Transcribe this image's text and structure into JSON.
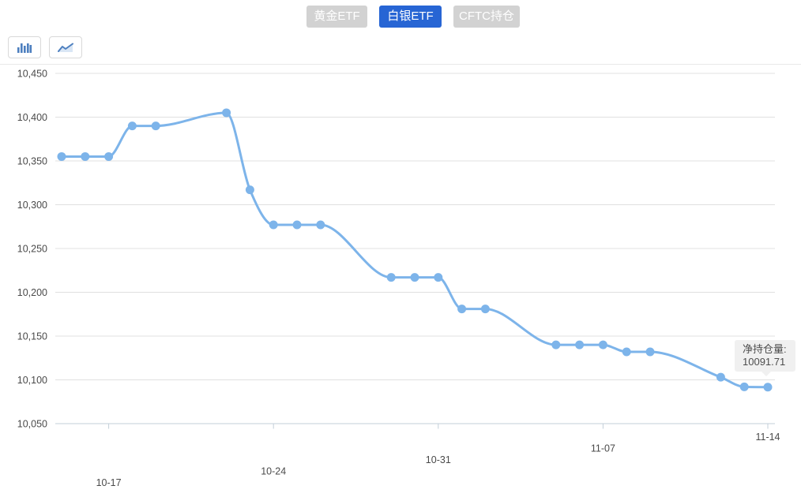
{
  "tabs": [
    {
      "label": "黄金ETF",
      "active": false
    },
    {
      "label": "白银ETF",
      "active": true
    },
    {
      "label": "CFTC持仓",
      "active": false
    }
  ],
  "toolbar": {
    "buttons": [
      {
        "icon": "bar-chart-icon"
      },
      {
        "icon": "line-chart-icon"
      }
    ]
  },
  "tooltip": {
    "label": "净持仓量:",
    "value": "10091.71"
  },
  "colors": {
    "accent_blue": "#2765d4",
    "inactive_tab_gray": "#d2d2d2",
    "series_line": "#7db4ea",
    "grid_line": "#e0e0e0",
    "axis_line": "#c3cfd9",
    "label_text": "#4a4a4a",
    "tooltip_bg": "#f0f0f0",
    "icon_blue": "#4d7fbf"
  },
  "chart_data": {
    "type": "line",
    "smooth": true,
    "series_name": "净持仓量",
    "x": [
      "10-15",
      "10-16",
      "10-17",
      "10-18",
      "10-19",
      "10-22",
      "10-23",
      "10-24",
      "10-25",
      "10-26",
      "10-29",
      "10-30",
      "10-31",
      "11-01",
      "11-02",
      "11-05",
      "11-06",
      "11-07",
      "11-08",
      "11-09",
      "11-12",
      "11-13",
      "11-14"
    ],
    "day_offsets": [
      0,
      1,
      2,
      3,
      4,
      7,
      8,
      9,
      10,
      11,
      14,
      15,
      16,
      17,
      18,
      21,
      22,
      23,
      24,
      25,
      28,
      29,
      30
    ],
    "values": [
      10355,
      10355,
      10355,
      10390,
      10390,
      10405,
      10317,
      10277,
      10277,
      10277,
      10217,
      10217,
      10217,
      10181,
      10181,
      10140,
      10140,
      10140,
      10132,
      10132,
      10103,
      10092,
      10091.71
    ],
    "ylim": [
      10050,
      10450
    ],
    "yticks": {
      "values": [
        10050,
        10100,
        10150,
        10200,
        10250,
        10300,
        10350,
        10400,
        10450
      ],
      "labels": [
        "10,050",
        "10,100",
        "10,150",
        "10,200",
        "10,250",
        "10,300",
        "10,350",
        "10,400",
        "10,450"
      ]
    },
    "xticks": [
      {
        "label": "10-17",
        "day": 2
      },
      {
        "label": "10-24",
        "day": 9
      },
      {
        "label": "10-31",
        "day": 16
      },
      {
        "label": "11-07",
        "day": 23
      },
      {
        "label": "11-14",
        "day": 30
      }
    ],
    "grid": true,
    "legend": "none",
    "xlabel": "",
    "ylabel": ""
  }
}
